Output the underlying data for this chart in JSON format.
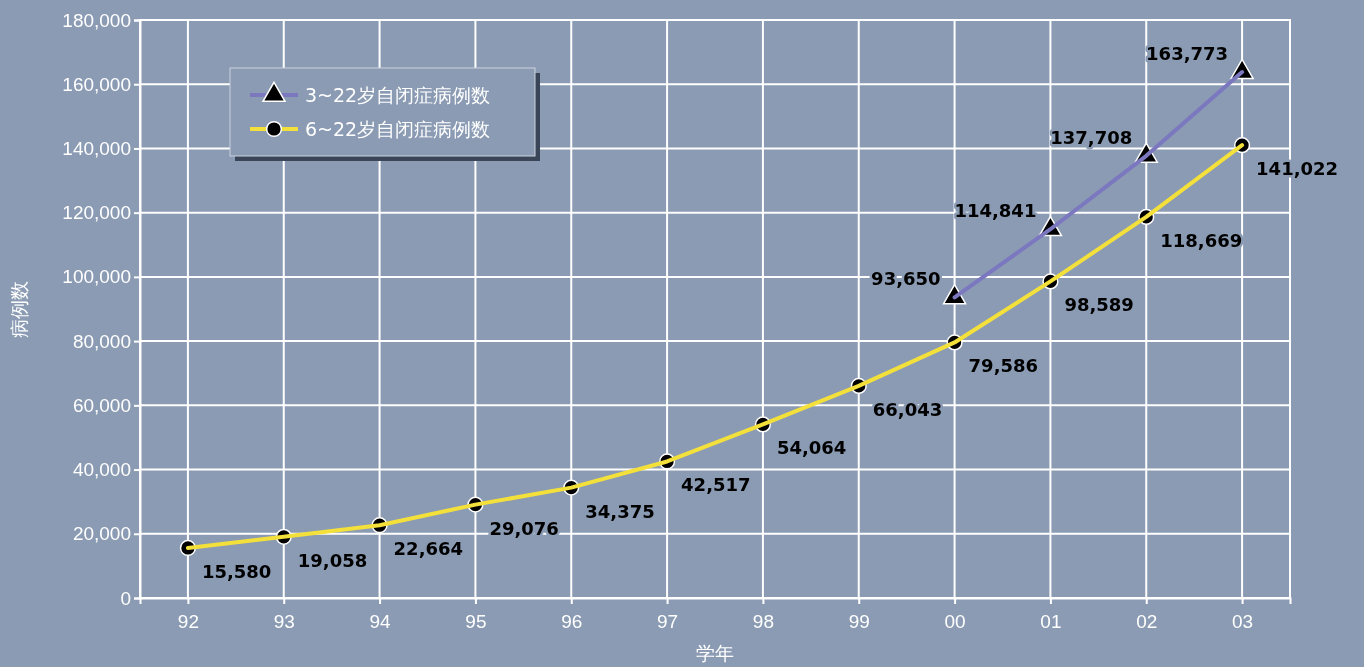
{
  "chart_data": {
    "type": "line",
    "xlabel": "学年",
    "ylabel": "病例数",
    "categories": [
      "92",
      "93",
      "94",
      "95",
      "96",
      "97",
      "98",
      "99",
      "00",
      "01",
      "02",
      "03"
    ],
    "ylim": [
      0,
      180000
    ],
    "yticks": [
      {
        "value": 0,
        "label": "0"
      },
      {
        "value": 20000,
        "label": "20,000"
      },
      {
        "value": 40000,
        "label": "40,000"
      },
      {
        "value": 60000,
        "label": "60,000"
      },
      {
        "value": 80000,
        "label": "80,000"
      },
      {
        "value": 100000,
        "label": "100,000"
      },
      {
        "value": 120000,
        "label": "120,000"
      },
      {
        "value": 140000,
        "label": "140,000"
      },
      {
        "value": 160000,
        "label": "160,000"
      },
      {
        "value": 180000,
        "label": "180,000"
      }
    ],
    "grid": true,
    "legend": "top left",
    "line_style": "solid",
    "series": [
      {
        "name": "3~22岁自闭症病例数",
        "color": "#7b78c0",
        "marker": "triangle",
        "values": [
          null,
          null,
          null,
          null,
          null,
          null,
          null,
          null,
          93650,
          114841,
          137708,
          163773
        ],
        "value_labels": [
          null,
          null,
          null,
          null,
          null,
          null,
          null,
          null,
          "93,650",
          "114,841",
          "137,708",
          "163,773"
        ]
      },
      {
        "name": "6~22岁自闭症病例数",
        "color": "#f4e03a",
        "marker": "circle",
        "values": [
          15580,
          19058,
          22664,
          29076,
          34375,
          42517,
          54064,
          66043,
          79586,
          98589,
          118669,
          141022
        ],
        "value_labels": [
          "15,580",
          "19,058",
          "22,664",
          "29,076",
          "34,375",
          "42,517",
          "54,064",
          "66,043",
          "79,586",
          "98,589",
          "118,669",
          "141,022"
        ]
      }
    ]
  }
}
